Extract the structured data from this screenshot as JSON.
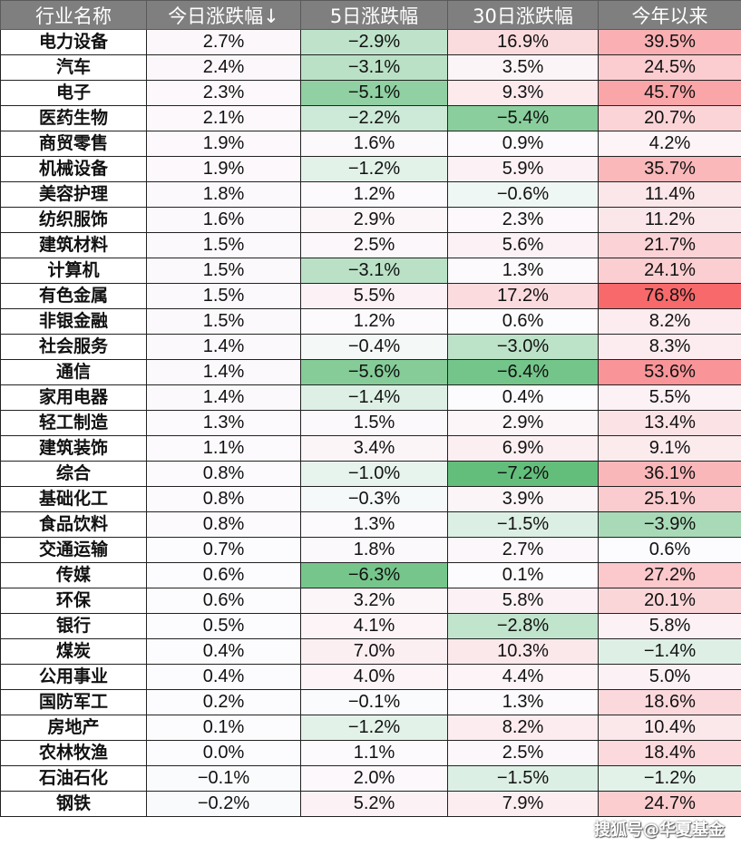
{
  "headers": [
    "行业名称",
    "今日涨跌幅↓",
    "5日涨跌幅",
    "30日涨跌幅",
    "今年以来"
  ],
  "colors": {
    "header_bg": "#7f7f7f",
    "scale_max": "#f8696b",
    "scale_mid": "#fcfcff",
    "scale_min": "#63be7b"
  },
  "rows": [
    [
      "电力设备",
      "2.7%",
      "−2.9%",
      "16.9%",
      "39.5%"
    ],
    [
      "汽车",
      "2.4%",
      "−3.1%",
      "3.5%",
      "24.5%"
    ],
    [
      "电子",
      "2.3%",
      "−5.1%",
      "9.3%",
      "45.7%"
    ],
    [
      "医药生物",
      "2.1%",
      "−2.2%",
      "−5.4%",
      "20.7%"
    ],
    [
      "商贸零售",
      "1.9%",
      "1.6%",
      "0.9%",
      "4.2%"
    ],
    [
      "机械设备",
      "1.9%",
      "−1.2%",
      "5.9%",
      "35.7%"
    ],
    [
      "美容护理",
      "1.8%",
      "1.2%",
      "−0.6%",
      "11.4%"
    ],
    [
      "纺织服饰",
      "1.6%",
      "2.9%",
      "2.3%",
      "11.2%"
    ],
    [
      "建筑材料",
      "1.5%",
      "2.5%",
      "5.6%",
      "21.7%"
    ],
    [
      "计算机",
      "1.5%",
      "−3.1%",
      "1.3%",
      "24.1%"
    ],
    [
      "有色金属",
      "1.5%",
      "5.5%",
      "17.2%",
      "76.8%"
    ],
    [
      "非银金融",
      "1.5%",
      "1.2%",
      "0.6%",
      "8.2%"
    ],
    [
      "社会服务",
      "1.4%",
      "−0.4%",
      "−3.0%",
      "8.3%"
    ],
    [
      "通信",
      "1.4%",
      "−5.6%",
      "−6.4%",
      "53.6%"
    ],
    [
      "家用电器",
      "1.4%",
      "−1.4%",
      "0.4%",
      "5.5%"
    ],
    [
      "轻工制造",
      "1.3%",
      "1.5%",
      "2.9%",
      "13.4%"
    ],
    [
      "建筑装饰",
      "1.1%",
      "3.4%",
      "6.9%",
      "9.1%"
    ],
    [
      "综合",
      "0.8%",
      "−1.0%",
      "−7.2%",
      "36.1%"
    ],
    [
      "基础化工",
      "0.8%",
      "−0.3%",
      "3.9%",
      "25.1%"
    ],
    [
      "食品饮料",
      "0.8%",
      "1.3%",
      "−1.5%",
      "−3.9%"
    ],
    [
      "交通运输",
      "0.7%",
      "1.8%",
      "2.7%",
      "0.6%"
    ],
    [
      "传媒",
      "0.6%",
      "−6.3%",
      "0.1%",
      "27.2%"
    ],
    [
      "环保",
      "0.6%",
      "3.2%",
      "5.8%",
      "20.1%"
    ],
    [
      "银行",
      "0.5%",
      "4.1%",
      "−2.8%",
      "5.8%"
    ],
    [
      "煤炭",
      "0.4%",
      "7.0%",
      "10.3%",
      "−1.4%"
    ],
    [
      "公用事业",
      "0.4%",
      "4.0%",
      "4.4%",
      "5.0%"
    ],
    [
      "国防军工",
      "0.2%",
      "−0.1%",
      "1.3%",
      "18.6%"
    ],
    [
      "房地产",
      "0.1%",
      "−1.2%",
      "8.2%",
      "10.4%"
    ],
    [
      "农林牧渔",
      "0.0%",
      "1.1%",
      "2.5%",
      "18.4%"
    ],
    [
      "石油石化",
      "−0.1%",
      "2.0%",
      "−1.5%",
      "−1.2%"
    ],
    [
      "钢铁",
      "−0.2%",
      "5.2%",
      "7.9%",
      "24.7%"
    ]
  ],
  "watermark": "搜狐号@华夏基金"
}
